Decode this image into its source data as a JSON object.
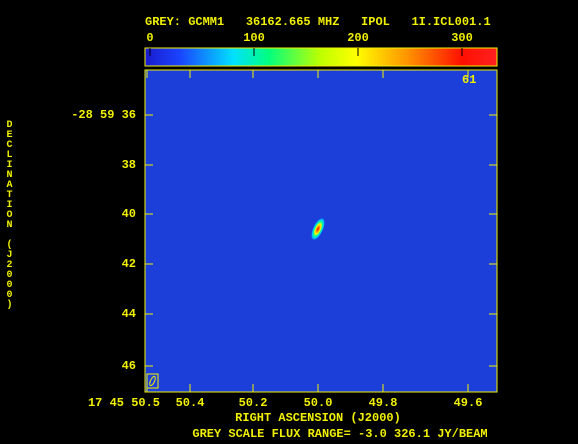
{
  "header": {
    "title": "GREY: GCMM1   36162.665 MHZ   IPOL   1I.ICL001.1"
  },
  "colorbar": {
    "labels": [
      "0",
      "100",
      "200",
      "300"
    ]
  },
  "plot": {
    "corner_label": "61",
    "y_axis": {
      "title": "DECLINATION (J2000)",
      "tick_labels": [
        "-28 59 36",
        "38",
        "40",
        "42",
        "44",
        "46"
      ]
    },
    "x_axis": {
      "title": "RIGHT ASCENSION (J2000)",
      "tick_labels": [
        "17 45 50.5",
        "50.4",
        "50.2",
        "50.0",
        "49.8",
        "49.6"
      ]
    }
  },
  "footer": "GREY SCALE FLUX RANGE= -3.0 326.1 JY/BEAM"
}
